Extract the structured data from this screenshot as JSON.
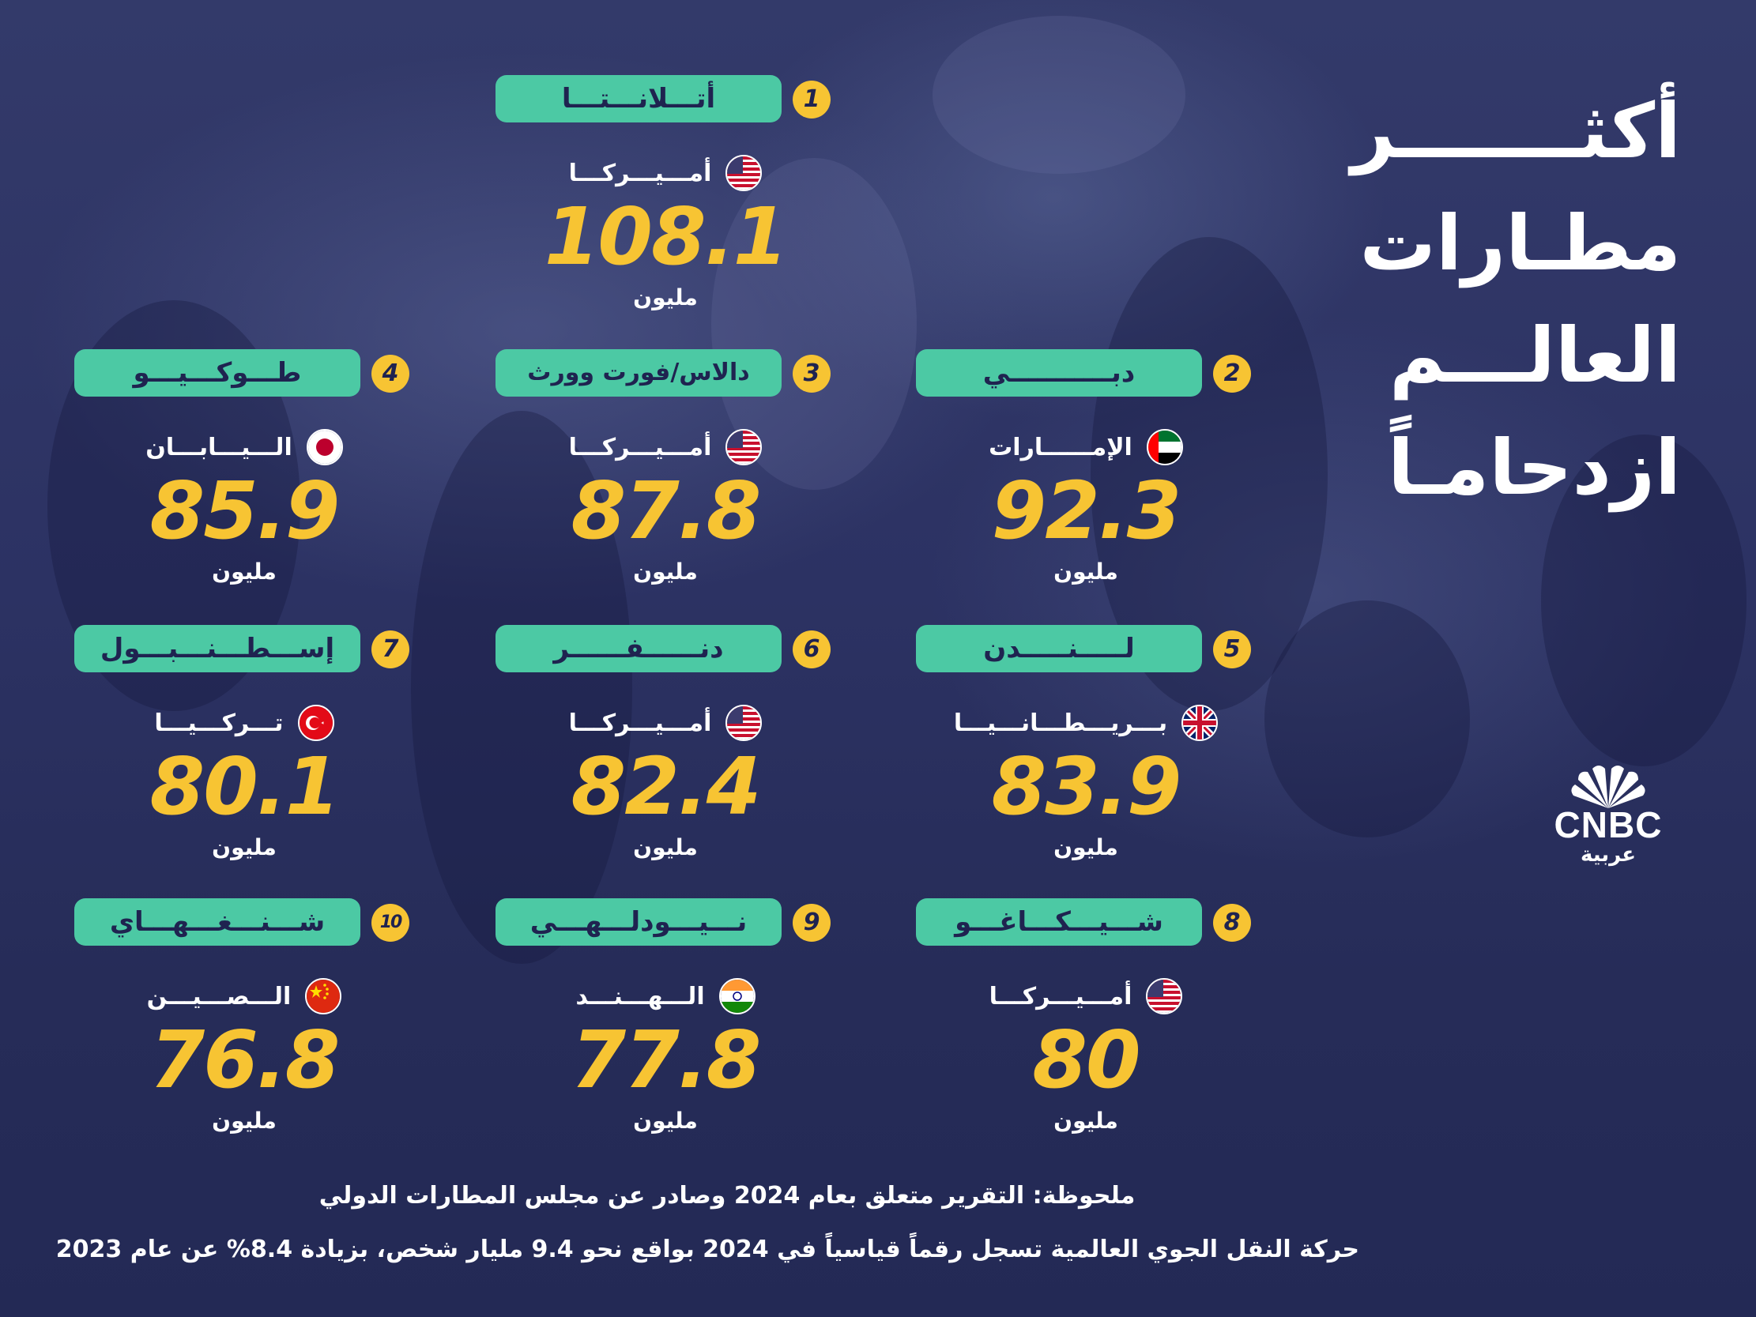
{
  "title_lines": [
    "أكثـــــــر",
    "مطـارات",
    "العالـــم",
    "ازدحامـاً"
  ],
  "logo": {
    "wordmark": "CNBC",
    "subtitle": "عربية",
    "icon": "peacock-icon"
  },
  "unit_label": "مليون",
  "airports": [
    {
      "rank": "1",
      "city": "أتـــلانـــتـــا",
      "country": "أمـــيـــركـــا",
      "flag": "usa",
      "value": "108.1"
    },
    {
      "rank": "2",
      "city": "دبـــــــــــي",
      "country": "الإمــــــارات",
      "flag": "uae",
      "value": "92.3"
    },
    {
      "rank": "3",
      "city": "دالاس/فورت وورث",
      "country": "أمـــيـــركـــا",
      "flag": "usa",
      "value": "87.8"
    },
    {
      "rank": "4",
      "city": "طـــوكـــيـــو",
      "country": "الـــيـــابـــان",
      "flag": "japan",
      "value": "85.9"
    },
    {
      "rank": "5",
      "city": "لـــــنـــــدن",
      "country": "بـــريـــطـــانـــيـــا",
      "flag": "uk",
      "value": "83.9"
    },
    {
      "rank": "6",
      "city": "دنــــــفــــــر",
      "country": "أمـــيـــركـــا",
      "flag": "usa",
      "value": "82.4"
    },
    {
      "rank": "7",
      "city": "إســـطـــنـــبـــول",
      "country": "تـــركـــيـــا",
      "flag": "turkey",
      "value": "80.1"
    },
    {
      "rank": "8",
      "city": "شـــيـــكـــاغـــو",
      "country": "أمـــيـــركـــا",
      "flag": "usa",
      "value": "80"
    },
    {
      "rank": "9",
      "city": "نـــيـــودلـــهـــي",
      "country": "الـــهـــنـــد",
      "flag": "india",
      "value": "77.8"
    },
    {
      "rank": "10",
      "city": "شـــنـــغـــهـــاي",
      "country": "الـــصـــيـــن",
      "flag": "china",
      "value": "76.8"
    }
  ],
  "notes": [
    "ملحوظة: التقرير متعلق بعام 2024 وصادر عن مجلس المطارات الدولي",
    "حركة النقل الجوي العالمية تسجل رقماً قياسياً في 2024 بواقع نحو 9.4 مليار شخص، بزيادة 8.4% عن عام 2023"
  ],
  "colors": {
    "background": "#2a2f5c",
    "accent_green": "#4cc9a4",
    "accent_yellow": "#f7c433",
    "text": "#ffffff"
  }
}
